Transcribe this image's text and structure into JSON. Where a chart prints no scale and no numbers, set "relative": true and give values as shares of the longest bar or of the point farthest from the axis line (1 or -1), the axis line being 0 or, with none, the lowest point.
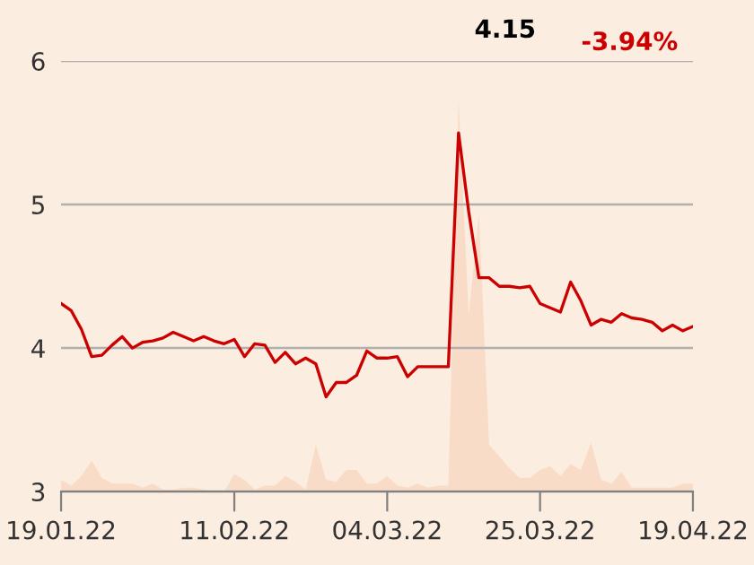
{
  "chart_data": [
    {
      "type": "line",
      "categories": [
        "19.01.22",
        null,
        null,
        null,
        null,
        null,
        null,
        null,
        null,
        null,
        null,
        null,
        null,
        null,
        null,
        null,
        null,
        "11.02.22",
        null,
        null,
        null,
        null,
        null,
        null,
        null,
        null,
        null,
        null,
        null,
        null,
        null,
        null,
        "04.03.22",
        null,
        null,
        null,
        null,
        null,
        null,
        null,
        null,
        null,
        null,
        null,
        null,
        null,
        null,
        "25.03.22",
        null,
        null,
        null,
        null,
        null,
        null,
        null,
        null,
        null,
        null,
        null,
        null,
        null,
        null,
        "19.04.22"
      ],
      "series": [
        {
          "color": "#cc0000",
          "values": [
            4.31,
            4.26,
            4.13,
            3.94,
            3.95,
            4.02,
            4.08,
            4.0,
            4.04,
            4.05,
            4.07,
            4.11,
            4.08,
            4.05,
            4.08,
            4.05,
            4.03,
            4.06,
            3.94,
            4.03,
            4.02,
            3.9,
            3.97,
            3.89,
            3.93,
            3.89,
            3.66,
            3.76,
            3.76,
            3.81,
            3.98,
            3.93,
            3.93,
            3.94,
            3.8,
            3.87,
            3.87,
            3.87,
            3.87,
            5.5,
            4.95,
            4.49,
            4.49,
            4.43,
            4.43,
            4.42,
            4.43,
            4.31,
            4.28,
            4.25,
            4.46,
            4.33,
            4.16,
            4.2,
            4.18,
            4.24,
            4.21,
            4.2,
            4.18,
            4.12,
            4.16,
            4.12,
            4.15
          ]
        }
      ],
      "ylim": [
        3,
        6
      ],
      "yticks": [
        3,
        4,
        5,
        6
      ],
      "grid": "y",
      "annotations": [
        "4.15",
        "-3.94%"
      ]
    },
    {
      "type": "area",
      "relative": true,
      "categories": [
        null,
        null,
        null,
        null,
        null,
        null,
        null,
        null,
        null,
        null,
        null,
        null,
        null,
        null,
        null,
        null,
        null,
        null,
        null,
        null,
        null,
        null,
        null,
        null,
        null,
        null,
        null,
        null,
        null,
        null,
        null,
        null,
        null,
        null,
        null,
        null,
        null,
        null,
        null,
        null,
        null,
        null,
        null,
        null,
        null,
        null,
        null,
        null,
        null,
        null,
        null,
        null,
        null,
        null,
        null,
        null,
        null,
        null,
        null,
        null,
        null,
        null,
        null
      ],
      "series": [
        {
          "color": "#f8dcc8",
          "values": [
            0.03,
            0.015,
            0.04,
            0.08,
            0.035,
            0.02,
            0.02,
            0.02,
            0.01,
            0.02,
            0.005,
            0.005,
            0.01,
            0.01,
            0.005,
            0,
            0,
            0.045,
            0.03,
            0.005,
            0.015,
            0.015,
            0.04,
            0.025,
            0.005,
            0.12,
            0.03,
            0.025,
            0.055,
            0.055,
            0.02,
            0.02,
            0.04,
            0.015,
            0.01,
            0.02,
            0.01,
            0.015,
            0.015,
            1.0,
            0.45,
            0.71,
            0.12,
            0.09,
            0.06,
            0.035,
            0.035,
            0.055,
            0.065,
            0.04,
            0.07,
            0.055,
            0.125,
            0.03,
            0.02,
            0.05,
            0.01,
            0.01,
            0.01,
            0.01,
            0.01,
            0.02,
            0.02
          ]
        }
      ]
    }
  ]
}
